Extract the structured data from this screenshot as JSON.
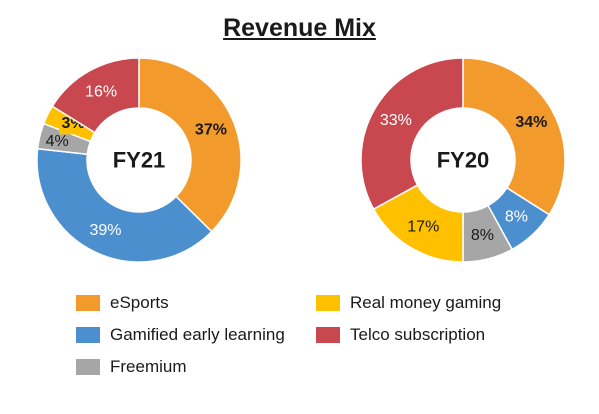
{
  "chart_data": [
    {
      "type": "pie",
      "variant": "donut",
      "center_label": "FY21",
      "title": "Revenue Mix",
      "segments": [
        {
          "name": "eSports",
          "value": 37,
          "label": "37%",
          "color": "#F39A2C"
        },
        {
          "name": "Gamified early learning",
          "value": 39,
          "label": "39%",
          "color": "#4C8FCF"
        },
        {
          "name": "Freemium",
          "value": 4,
          "label": "4%",
          "color": "#A6A6A6"
        },
        {
          "name": "Real money gaming",
          "value": 3,
          "label": "3%",
          "color": "#FFC000"
        },
        {
          "name": "Telco subscription",
          "value": 16,
          "label": "16%",
          "color": "#C9484F"
        }
      ]
    },
    {
      "type": "pie",
      "variant": "donut",
      "center_label": "FY20",
      "segments": [
        {
          "name": "eSports",
          "value": 34,
          "label": "34%",
          "color": "#F39A2C"
        },
        {
          "name": "Gamified early learning",
          "value": 8,
          "label": "8%",
          "color": "#4C8FCF"
        },
        {
          "name": "Freemium",
          "value": 8,
          "label": "8%",
          "color": "#A6A6A6"
        },
        {
          "name": "Real money gaming",
          "value": 17,
          "label": "17%",
          "color": "#FFC000"
        },
        {
          "name": "Telco subscription",
          "value": 33,
          "label": "33%",
          "color": "#C9484F"
        }
      ]
    }
  ],
  "title": "Revenue Mix",
  "legend": {
    "placement": "bottom",
    "items": [
      {
        "label": "eSports",
        "color": "#F39A2C"
      },
      {
        "label": "Real money gaming",
        "color": "#FFC000"
      },
      {
        "label": "Gamified early learning",
        "color": "#4C8FCF"
      },
      {
        "label": "Telco subscription",
        "color": "#C9484F"
      },
      {
        "label": "Freemium",
        "color": "#A6A6A6"
      }
    ]
  }
}
